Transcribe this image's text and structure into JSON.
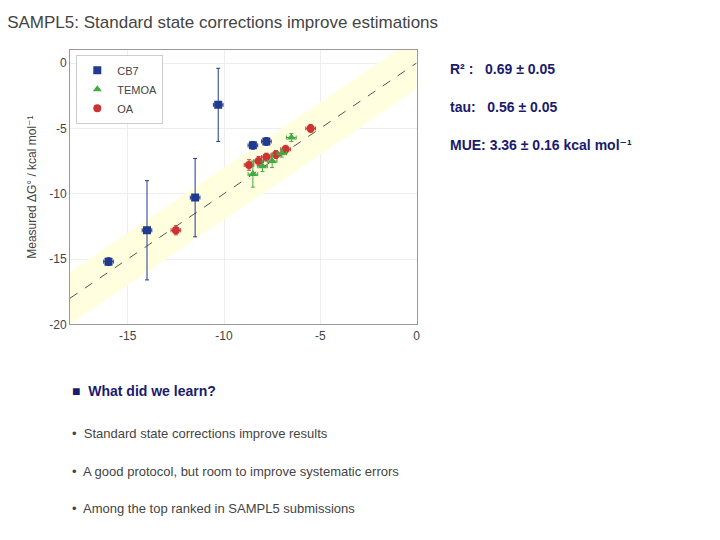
{
  "chart_data": {
    "type": "scatter",
    "title": "SAMPL5: Standard state corrections improve estimations",
    "ylabel": "Measured ΔG° / kcal mol⁻¹",
    "xlim": [
      -18,
      0
    ],
    "ylim": [
      -20,
      1
    ],
    "xticks": [
      -15,
      -10,
      -5,
      0
    ],
    "yticks": [
      0,
      -5,
      -10,
      -15,
      -20
    ],
    "grid": true,
    "legend": "upper left",
    "band_width": 2.0,
    "series": [
      {
        "name": "OA",
        "color": "#cc3333",
        "marker": "circle",
        "x": [
          -5.5,
          -6.8,
          -7.3,
          -7.8,
          -8.2,
          -8.7,
          -12.5
        ],
        "values": [
          -5.0,
          -6.6,
          -7.0,
          -7.2,
          -7.5,
          -7.8,
          -12.8
        ],
        "xerr": [
          0.25,
          0.25,
          0.25,
          0.25,
          0.25,
          0.25,
          0.25
        ],
        "yerr": [
          0.3,
          0.3,
          0.3,
          0.3,
          0.35,
          0.4,
          0.35
        ]
      },
      {
        "name": "TEMOA",
        "color": "#44aa44",
        "marker": "triangle-up",
        "x": [
          -6.5,
          -7.0,
          -7.5,
          -8.0,
          -8.5
        ],
        "values": [
          -5.7,
          -6.9,
          -7.5,
          -7.9,
          -8.5
        ],
        "xerr": [
          0.25,
          0.25,
          0.25,
          0.25,
          0.25
        ],
        "yerr": [
          0.3,
          0.3,
          0.5,
          0.4,
          1.0
        ]
      },
      {
        "name": "CB7",
        "color": "#1f3a8f",
        "marker": "square",
        "x": [
          -7.8,
          -8.5,
          -10.3,
          -11.5,
          -14.0,
          -16.0
        ],
        "values": [
          -6.0,
          -6.3,
          -3.2,
          -10.3,
          -12.8,
          -15.2
        ],
        "xerr": [
          0.25,
          0.25,
          0.25,
          0.25,
          0.25,
          0.25
        ],
        "yerr": [
          0.3,
          0.3,
          2.8,
          3.0,
          3.8,
          0.3
        ]
      }
    ],
    "stats": [
      "R² :   0.69 ± 0.05",
      "tau:   0.56 ± 0.05",
      "MUE: 3.36 ± 0.16 kcal mol⁻¹"
    ],
    "bullet_header": "■  What did we learn?",
    "bullet_items": [
      "•  Standard state corrections improve results",
      "•  A good protocol, but room to improve systematic errors",
      "•  Among the top ranked in SAMPL5 submissions"
    ]
  }
}
